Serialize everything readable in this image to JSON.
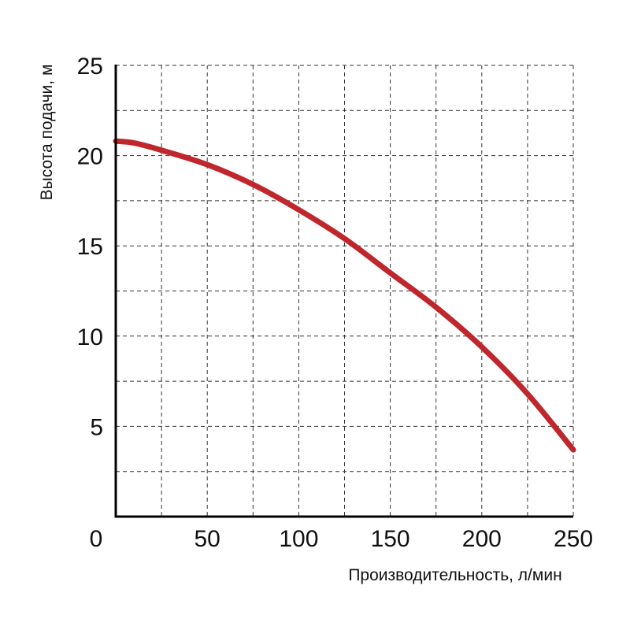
{
  "chart_data": {
    "type": "line",
    "title": "",
    "xlabel": "Производительность, л/мин",
    "ylabel": "Высота подачи, м",
    "xlim": [
      0,
      250
    ],
    "ylim": [
      0,
      25
    ],
    "x_ticks": [
      0,
      50,
      100,
      150,
      200,
      250
    ],
    "y_ticks": [
      5,
      10,
      15,
      20,
      25
    ],
    "grid": true,
    "grid_style": "dashed",
    "series": [
      {
        "color": "#c0272d",
        "x": [
          0,
          10,
          25,
          50,
          75,
          100,
          125,
          150,
          175,
          200,
          225,
          250
        ],
        "y": [
          20.8,
          20.7,
          20.3,
          19.5,
          18.4,
          17.0,
          15.4,
          13.5,
          11.6,
          9.4,
          6.8,
          3.7
        ]
      }
    ]
  }
}
